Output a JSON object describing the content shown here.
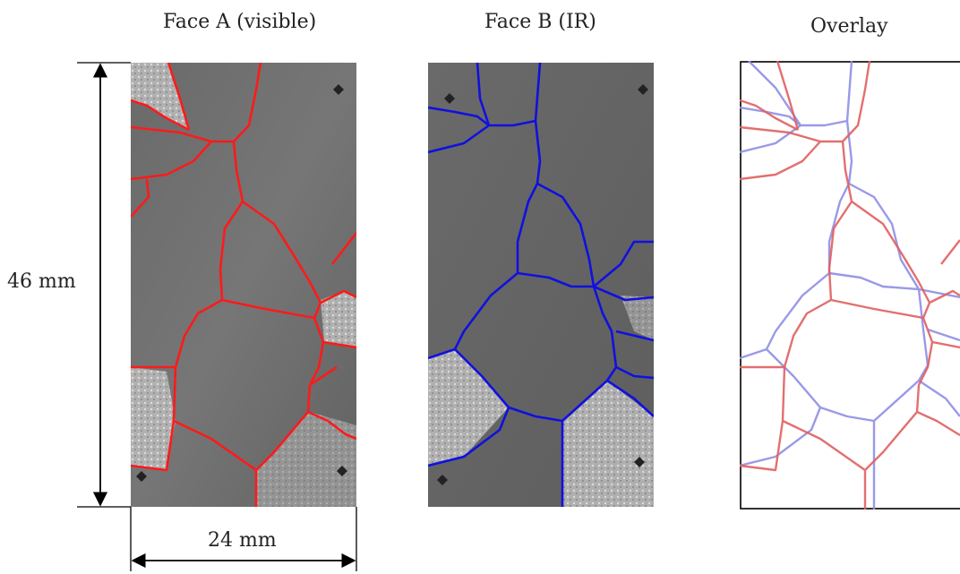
{
  "panels": [
    {
      "title": "Face A (visible)"
    },
    {
      "title": "Face B (IR)"
    },
    {
      "title": "Overlay"
    }
  ],
  "dimensions": {
    "height_label": "46 mm",
    "width_label": "24 mm"
  },
  "colors": {
    "face_a_boundary": "#ff1a1a",
    "face_b_boundary": "#1a1aee",
    "overlay_red": "#e06060",
    "overlay_blue": "#8f8fe6",
    "specimen_gray": "#6e6e6e",
    "light_grain": "#bdbdbd"
  }
}
